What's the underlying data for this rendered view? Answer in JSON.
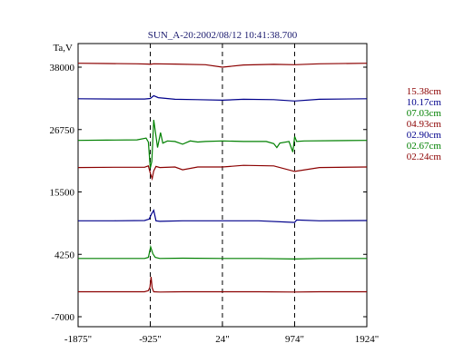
{
  "chart_data": {
    "type": "line",
    "title": "SUN_A-20:2002/08/12 10:41:38.700",
    "ylabel": "Ta,V",
    "xlabel": "",
    "x_ticks": [
      "-1875\"",
      "-925\"",
      "24\"",
      "974\"",
      "1924\""
    ],
    "x_tick_values": [
      -1875,
      -925,
      24,
      974,
      1924
    ],
    "y_ticks": [
      "38000",
      "26750",
      "15500",
      "4250",
      "-7000"
    ],
    "y_tick_values": [
      38000,
      26750,
      15500,
      4250,
      -7000
    ],
    "xlim": [
      -1875,
      1924
    ],
    "ylim": [
      -7000,
      38000
    ],
    "grid": "dashed vertical lines at -925\", 24\", 974\"",
    "legend_placement": "right",
    "series": [
      {
        "name": "15.38cm",
        "color": "#8b0000",
        "x": [
          -1875,
          -1500,
          -1100,
          -950,
          -925,
          -880,
          -600,
          -200,
          24,
          300,
          700,
          974,
          1300,
          1924
        ],
        "y": [
          38700,
          38650,
          38600,
          38550,
          38500,
          38600,
          38550,
          38450,
          38000,
          38400,
          38500,
          38450,
          38600,
          38700
        ]
      },
      {
        "name": "10.17cm",
        "color": "#00008b",
        "x": [
          -1875,
          -1400,
          -1000,
          -925,
          -880,
          -820,
          -600,
          -300,
          24,
          300,
          700,
          974,
          1300,
          1924
        ],
        "y": [
          32300,
          32250,
          32250,
          32350,
          32850,
          32500,
          32200,
          32150,
          32050,
          32200,
          32150,
          31900,
          32200,
          32300
        ]
      },
      {
        "name": "07.03cm",
        "color": "#008000",
        "x": [
          -1875,
          -1500,
          -1100,
          -980,
          -950,
          -925,
          -905,
          -880,
          -860,
          -830,
          -790,
          -760,
          -700,
          -600,
          -500,
          -400,
          -300,
          -200,
          24,
          300,
          600,
          700,
          740,
          780,
          900,
          950,
          974,
          1000,
          1100,
          1500,
          1924
        ],
        "y": [
          24800,
          24850,
          24900,
          25200,
          24500,
          19800,
          21000,
          28500,
          26500,
          23500,
          26200,
          24300,
          24700,
          24600,
          24100,
          24700,
          24500,
          24600,
          24700,
          24600,
          24600,
          24200,
          23500,
          24300,
          24600,
          22700,
          25500,
          24600,
          24700,
          24750,
          24800
        ]
      },
      {
        "name": "04.93cm",
        "color": "#8b0000",
        "x": [
          -1875,
          -1400,
          -1000,
          -950,
          -925,
          -900,
          -880,
          -850,
          -800,
          -600,
          -500,
          -300,
          -100,
          24,
          300,
          700,
          974,
          1300,
          1924
        ],
        "y": [
          19900,
          19950,
          19950,
          20200,
          18900,
          17900,
          19300,
          20100,
          19900,
          20000,
          19500,
          20000,
          20000,
          20000,
          20300,
          20200,
          19200,
          19900,
          20000
        ]
      },
      {
        "name": "02.90cm",
        "color": "#00008b",
        "x": [
          -1875,
          -1400,
          -1000,
          -940,
          -910,
          -880,
          -850,
          -800,
          -500,
          24,
          500,
          974,
          1000,
          1300,
          1924
        ],
        "y": [
          10300,
          10300,
          10350,
          10600,
          11500,
          12200,
          10300,
          10200,
          10300,
          10300,
          10300,
          10000,
          10450,
          10300,
          10350
        ]
      },
      {
        "name": "02.67cm",
        "color": "#008000",
        "x": [
          -1875,
          -1400,
          -1000,
          -950,
          -920,
          -890,
          -860,
          -800,
          -500,
          24,
          500,
          974,
          1300,
          1924
        ],
        "y": [
          3500,
          3500,
          3500,
          3700,
          5600,
          4300,
          3700,
          3500,
          3550,
          3500,
          3500,
          3400,
          3500,
          3500
        ]
      },
      {
        "name": "02.24cm",
        "color": "#8b0000",
        "x": [
          -1875,
          -1400,
          -1000,
          -950,
          -930,
          -915,
          -900,
          -880,
          -800,
          -500,
          24,
          500,
          974,
          1300,
          1924
        ],
        "y": [
          -2500,
          -2500,
          -2500,
          -2300,
          -1700,
          180,
          -1800,
          -2500,
          -2550,
          -2500,
          -2500,
          -2500,
          -2550,
          -2500,
          -2500
        ]
      }
    ]
  }
}
